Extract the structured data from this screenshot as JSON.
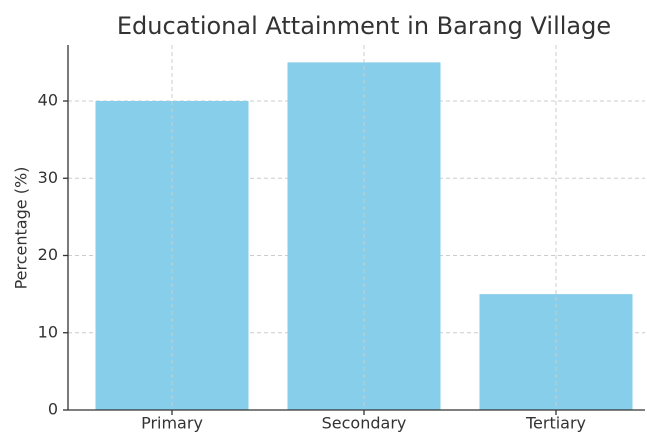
{
  "chart_data": {
    "type": "bar",
    "title": "Educational Attainment in Barang Village",
    "y_label": "Percentage (%)",
    "categories": [
      "Primary",
      "Secondary",
      "Tertiary"
    ],
    "values": [
      40,
      45,
      15
    ],
    "color": "#87ceeb",
    "ylim": [
      0,
      47.25
    ],
    "yticks": [
      0,
      10,
      20,
      30,
      40
    ],
    "grid": true
  }
}
